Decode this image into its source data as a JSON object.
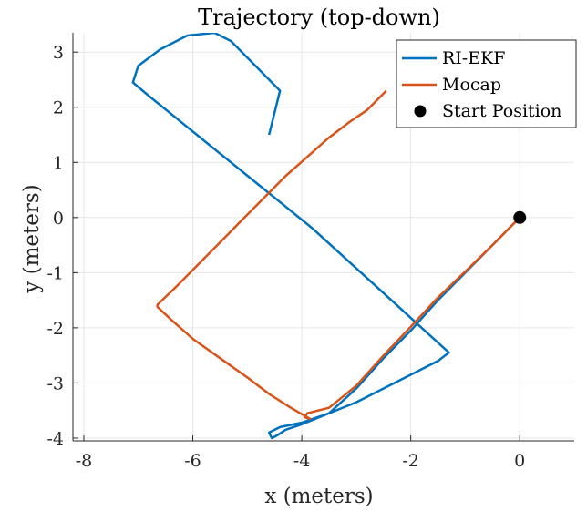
{
  "chart_data": {
    "type": "line",
    "title": "Trajectory (top-down)",
    "xlabel": "x (meters)",
    "ylabel": "y (meters)",
    "xlim": [
      -8.2,
      1.0
    ],
    "ylim": [
      -4.05,
      3.35
    ],
    "xticks": [
      -8,
      -6,
      -4,
      -2,
      0
    ],
    "xtick_labels": [
      "-8",
      "-6",
      "-4",
      "-2",
      "0"
    ],
    "yticks": [
      -4,
      -3,
      -2,
      -1,
      0,
      1,
      2,
      3
    ],
    "ytick_labels": [
      "-4",
      "-3",
      "-2",
      "-1",
      "0",
      "1",
      "2",
      "3"
    ],
    "grid": true,
    "legend": "top-right",
    "series": [
      {
        "name": "RI-EKF",
        "color": "#0072BD",
        "x": [
          0.0,
          -0.5,
          -1.0,
          -1.5,
          -2.0,
          -2.5,
          -3.0,
          -3.5,
          -4.0,
          -4.3,
          -4.45,
          -4.55,
          -4.6,
          -4.4,
          -4.0,
          -3.5,
          -3.0,
          -2.5,
          -2.0,
          -1.5,
          -1.3,
          -1.8,
          -2.3,
          -2.8,
          -3.3,
          -3.8,
          -4.3,
          -4.8,
          -5.3,
          -5.8,
          -6.3,
          -6.8,
          -7.1,
          -7.0,
          -6.6,
          -6.1,
          -5.6,
          -5.3,
          -5.0,
          -4.7,
          -4.4,
          -4.5,
          -4.6
        ],
        "y": [
          0.0,
          -0.5,
          -1.0,
          -1.5,
          -2.05,
          -2.55,
          -3.1,
          -3.55,
          -3.75,
          -3.85,
          -3.95,
          -4.0,
          -3.9,
          -3.8,
          -3.72,
          -3.55,
          -3.35,
          -3.1,
          -2.85,
          -2.6,
          -2.45,
          -2.0,
          -1.55,
          -1.1,
          -0.65,
          -0.2,
          0.2,
          0.6,
          1.0,
          1.4,
          1.8,
          2.2,
          2.45,
          2.75,
          3.05,
          3.3,
          3.35,
          3.2,
          2.9,
          2.6,
          2.3,
          1.9,
          1.5
        ],
        "note_orientation": "path drawn using plotted order"
      },
      {
        "name": "Mocap",
        "color": "#D95319",
        "x": [
          0.0,
          -0.5,
          -1.0,
          -1.5,
          -2.0,
          -2.5,
          -3.0,
          -3.5,
          -3.9,
          -3.95,
          -3.85,
          -4.2,
          -4.6,
          -5.0,
          -5.5,
          -6.0,
          -6.4,
          -6.65,
          -6.65,
          -6.3,
          -5.9,
          -5.5,
          -5.1,
          -4.7,
          -4.3,
          -3.9,
          -3.5,
          -3.1,
          -2.8,
          -2.6,
          -2.45
        ],
        "y": [
          0.0,
          -0.5,
          -0.98,
          -1.45,
          -1.98,
          -2.5,
          -3.05,
          -3.45,
          -3.55,
          -3.62,
          -3.65,
          -3.45,
          -3.2,
          -2.9,
          -2.55,
          -2.2,
          -1.85,
          -1.62,
          -1.58,
          -1.25,
          -0.85,
          -0.45,
          -0.05,
          0.35,
          0.75,
          1.1,
          1.45,
          1.75,
          1.95,
          2.15,
          2.3
        ]
      },
      {
        "name": "Start Position",
        "color": "#000000",
        "x": [
          0.0
        ],
        "y": [
          0.0
        ]
      }
    ]
  }
}
